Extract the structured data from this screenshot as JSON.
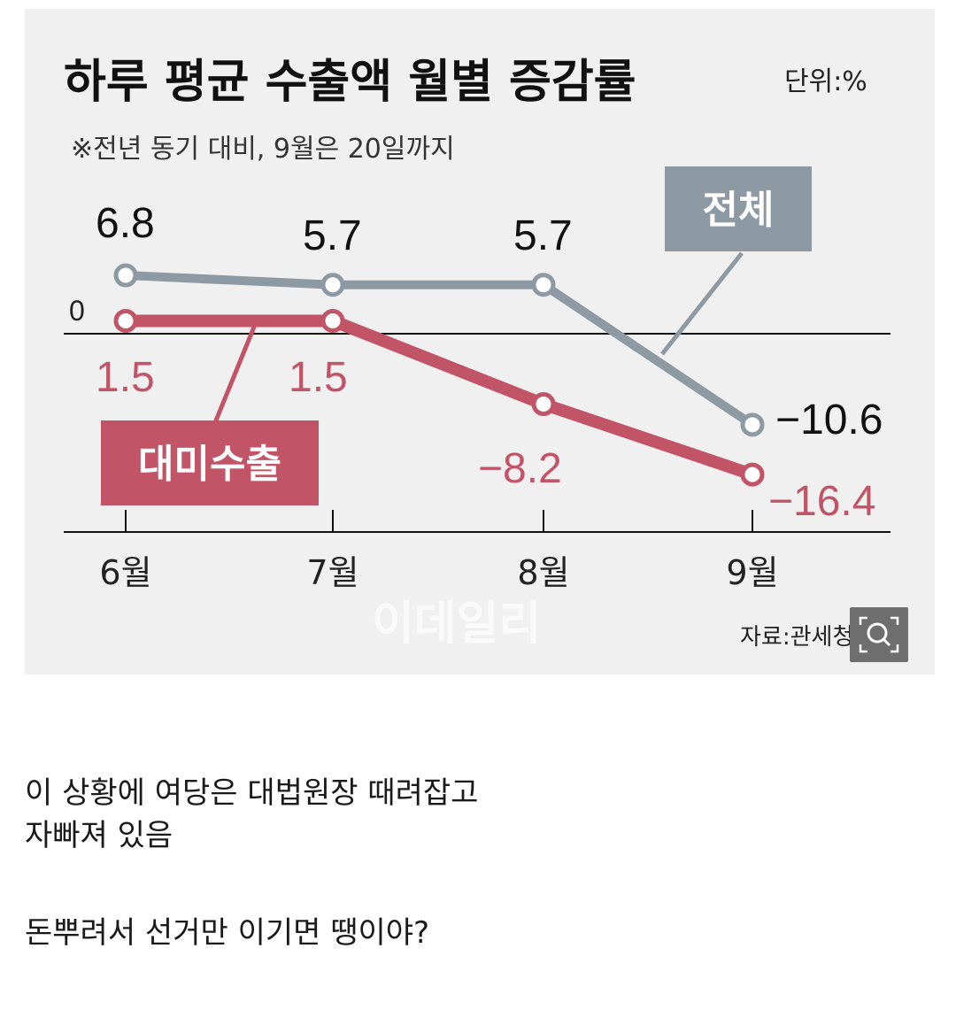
{
  "colors": {
    "total": "#8d9aa3",
    "us_exports": "#c15567",
    "card_bg": "#f0f0f0",
    "zoom_button": "#6e6e6e"
  },
  "chart": {
    "title": "하루 평균 수출액 월별 증감률",
    "unit": "단위:%",
    "subtitle": "※전년 동기 대비, 9월은 20일까지",
    "zero_label": "0",
    "source": "자료:관세청",
    "watermark": "이데일리",
    "series_total_label": "전체",
    "series_us_label": "대미수출",
    "value_labels_total": [
      "6.8",
      "5.7",
      "5.7",
      "−10.6"
    ],
    "value_labels_us": [
      "1.5",
      "1.5",
      "−8.2",
      "−16.4"
    ]
  },
  "chart_data": {
    "type": "line",
    "title": "하루 평균 수출액 월별 증감률",
    "subtitle": "※전년 동기 대비, 9월은 20일까지",
    "unit": "%",
    "categories": [
      "6월",
      "7월",
      "8월",
      "9월"
    ],
    "series": [
      {
        "name": "전체",
        "values": [
          6.8,
          5.7,
          5.7,
          -10.6
        ]
      },
      {
        "name": "대미수출",
        "values": [
          1.5,
          1.5,
          -8.2,
          -16.4
        ]
      }
    ],
    "source": "자료:관세청",
    "grid": false,
    "legend": "inline labels"
  },
  "zoom_icon": "magnifier-expand-icon",
  "post": {
    "line1": "이 상황에 여당은 대법원장 때려잡고",
    "line2": "자빠져 있음",
    "line3": "돈뿌려서 선거만 이기면 땡이야?"
  }
}
